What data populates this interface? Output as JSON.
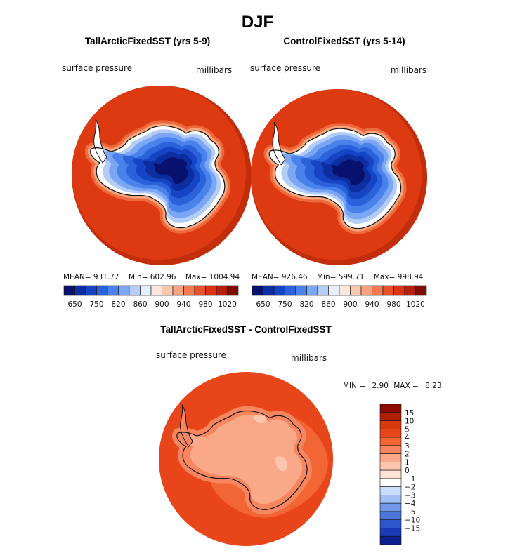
{
  "figure": {
    "title": "DJF"
  },
  "colors": {
    "ocean": "#dd3a12",
    "ocean_shadow": "#c22e0c",
    "coast": "#111111"
  },
  "chart_data": [
    {
      "type": "heatmap",
      "name": "panel-left",
      "title": "TallArcticFixedSST (yrs 5-9)",
      "variable": "surface pressure",
      "units": "millibars",
      "stats": {
        "mean_label": "MEAN=",
        "mean": "931.77",
        "min_label": "Min=",
        "min": "602.96",
        "max_label": "Max=",
        "max": "1004.94"
      },
      "colorbar": {
        "colors": [
          "#08116e",
          "#0d2ea0",
          "#1545c4",
          "#2a62dc",
          "#4a82ec",
          "#7aa6f4",
          "#b4cdf8",
          "#e6efff",
          "#fde6da",
          "#fbc8ad",
          "#f7a27e",
          "#f27a50",
          "#e8532a",
          "#dc3412",
          "#b42009",
          "#7e0d04"
        ],
        "ticks": [
          "650",
          "750",
          "820",
          "860",
          "900",
          "940",
          "980",
          "1020"
        ]
      }
    },
    {
      "type": "heatmap",
      "name": "panel-right",
      "title": "ControlFixedSST (yrs 5-14)",
      "variable": "surface pressure",
      "units": "millibars",
      "stats": {
        "mean_label": "MEAN=",
        "mean": "926.46",
        "min_label": "Min=",
        "min": "599.71",
        "max_label": "Max=",
        "max": "998.94"
      },
      "colorbar": {
        "colors": [
          "#08116e",
          "#0d2ea0",
          "#1545c4",
          "#2a62dc",
          "#4a82ec",
          "#7aa6f4",
          "#b4cdf8",
          "#e6efff",
          "#fde6da",
          "#fbc8ad",
          "#f7a27e",
          "#f27a50",
          "#e8532a",
          "#dc3412",
          "#b42009",
          "#7e0d04"
        ],
        "ticks": [
          "650",
          "750",
          "820",
          "860",
          "900",
          "940",
          "980",
          "1020"
        ]
      }
    },
    {
      "type": "heatmap",
      "name": "panel-diff",
      "title": "TallArcticFixedSST - ControlFixedSST",
      "variable": "surface pressure",
      "units": "millibars",
      "stats": {
        "min_label": "MIN =",
        "min": "2.90",
        "max_label": "MAX =",
        "max": "8.23"
      },
      "colorbar": {
        "colors": [
          "#8b0a02",
          "#b01e06",
          "#d83a10",
          "#e8461a",
          "#f26636",
          "#f58660",
          "#f9a888",
          "#fcc6ae",
          "#fee4d6",
          "#ffffff",
          "#c9dcfb",
          "#9ebef4",
          "#6f98ea",
          "#4a76de",
          "#2e57ce",
          "#1a3ab8",
          "#0d1f8e"
        ],
        "ticks": [
          "15",
          "10",
          "5",
          "4",
          "3",
          "2",
          "1",
          "0",
          "−1",
          "−2",
          "−3",
          "−4",
          "−5",
          "−10",
          "−15"
        ]
      }
    }
  ]
}
